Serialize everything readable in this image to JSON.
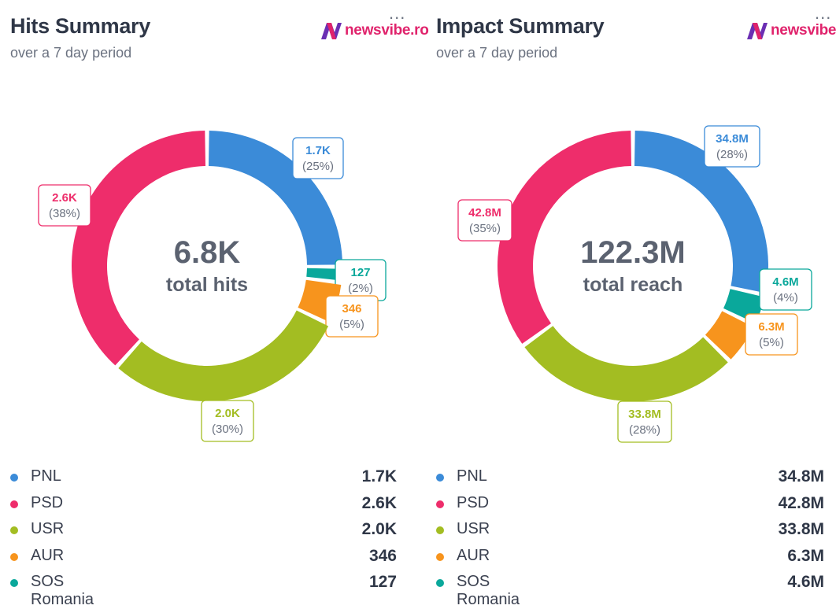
{
  "hits": {
    "title": "Hits Summary",
    "subtitle": "over a 7 day period",
    "logo_text": "newsvibe.ro",
    "menu_label": "...",
    "center_value": "6.8K",
    "center_label": "total hits"
  },
  "impact": {
    "title": "Impact Summary",
    "subtitle": "over a 7 day period",
    "logo_text": "newsvibe.ro",
    "menu_label": "...",
    "center_value": "122.3M",
    "center_label": "total reach"
  },
  "colors": {
    "PNL": "#3b8bd8",
    "PSD": "#ee2d6b",
    "USR": "#a3bd22",
    "AUR": "#f7941d",
    "SOS Romania": "#0aa89b",
    "logo_n": "#6b2fb3",
    "logo_text": "#e0236c"
  },
  "chart_data": [
    {
      "type": "pie",
      "categories": [
        "PNL",
        "PSD",
        "USR",
        "AUR",
        "SOS Romania"
      ],
      "values": [
        1700,
        2600,
        2000,
        346,
        127
      ],
      "value_labels": [
        "1.7K",
        "2.6K",
        "2.0K",
        "346",
        "127"
      ],
      "percent_labels": [
        "(25%)",
        "(38%)",
        "(30%)",
        "(5%)",
        "(2%)"
      ],
      "slice_order": [
        "PNL",
        "SOS Romania",
        "AUR",
        "USR",
        "PSD"
      ]
    },
    {
      "type": "pie",
      "categories": [
        "PNL",
        "PSD",
        "USR",
        "AUR",
        "SOS Romania"
      ],
      "values": [
        34800000,
        42800000,
        33800000,
        6300000,
        4600000
      ],
      "value_labels": [
        "34.8M",
        "42.8M",
        "33.8M",
        "6.3M",
        "4.6M"
      ],
      "percent_labels": [
        "(28%)",
        "(35%)",
        "(28%)",
        "(5%)",
        "(4%)"
      ],
      "slice_order": [
        "PNL",
        "SOS Romania",
        "AUR",
        "USR",
        "PSD"
      ]
    }
  ]
}
